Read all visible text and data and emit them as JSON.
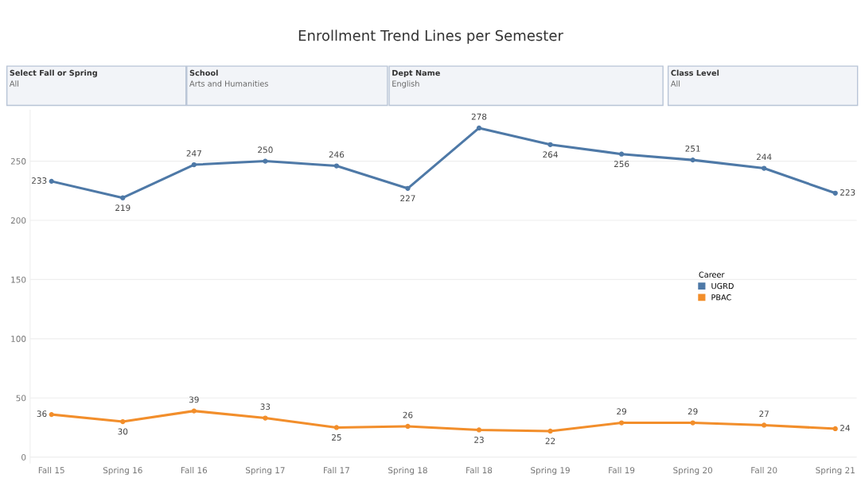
{
  "chart_data": {
    "type": "line",
    "title": "Enrollment Trend Lines per Semester",
    "categories": [
      "Fall 15",
      "Spring 16",
      "Fall 16",
      "Spring 17",
      "Fall 17",
      "Spring 18",
      "Fall 18",
      "Spring 19",
      "Fall 19",
      "Spring 20",
      "Fall 20",
      "Spring 21"
    ],
    "series": [
      {
        "name": "UGRD",
        "color": "#4e79a7",
        "values": [
          233,
          219,
          247,
          250,
          246,
          227,
          278,
          264,
          256,
          251,
          244,
          223
        ]
      },
      {
        "name": "PBAC",
        "color": "#f28e2b",
        "values": [
          36,
          30,
          39,
          33,
          25,
          26,
          23,
          22,
          29,
          29,
          27,
          24
        ]
      }
    ],
    "ylim": [
      -5,
      293
    ],
    "yticks": [
      0,
      50,
      100,
      150,
      200,
      250
    ],
    "grid": "y",
    "legend": "right",
    "legend_title": "Career",
    "data_labels": true,
    "marker": "circle",
    "line_style": "solid",
    "annotations": [
      "Select Fall or Spring",
      "All",
      "School",
      "Arts and Humanities",
      "Dept Name",
      "English",
      "Class Level",
      "All"
    ]
  }
}
